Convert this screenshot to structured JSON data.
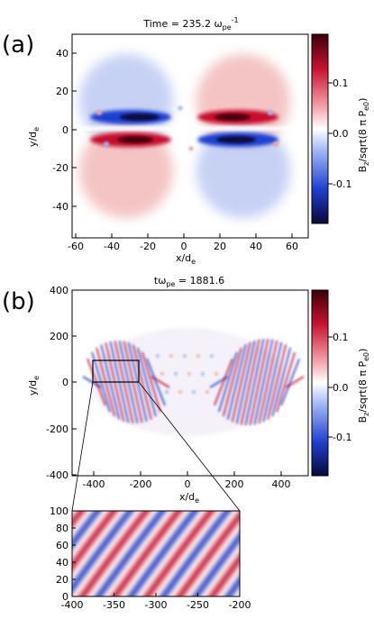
{
  "panel_a": {
    "tag": "(a)",
    "title_main": "Time =  235.2 ",
    "title_omega": "ω",
    "title_sub": "pe",
    "title_sup": "-1",
    "xlabel_main": "x/d",
    "xlabel_sub": "e",
    "ylabel_main": "y/d",
    "ylabel_sub": "e",
    "xticks": [
      "-60",
      "-40",
      "-20",
      "0",
      "20",
      "40",
      "60"
    ],
    "yticks": [
      "40",
      "20",
      "0",
      "-20",
      "-40"
    ],
    "colorbar": {
      "label": "B",
      "label_sub": "z",
      "label_rest": "/sqrt(8 π P",
      "label_sub2": "e0",
      "label_close": ")",
      "ticks": [
        "0.1",
        "0.0",
        "-0.1"
      ]
    }
  },
  "panel_b": {
    "tag": "(b)",
    "title_main": "tω",
    "title_sub": "pe",
    "title_rest": " = 1881.6",
    "xlabel_main": "x/d",
    "xlabel_sub": "e",
    "ylabel_main": "y/d",
    "ylabel_sub": "e",
    "xticks": [
      "-400",
      "-200",
      "0",
      "200",
      "400"
    ],
    "yticks": [
      "400",
      "200",
      "0",
      "-200",
      "-400"
    ],
    "colorbar": {
      "label": "B",
      "label_sub": "z",
      "label_rest": "/sqrt(8 π P",
      "label_sub2": "e0",
      "label_close": ")",
      "ticks": [
        "0.1",
        "0.0",
        "-0.1"
      ]
    }
  },
  "inset": {
    "xticks": [
      "-400",
      "-350",
      "-300",
      "-250",
      "-200"
    ],
    "yticks": [
      "100",
      "80",
      "60",
      "40",
      "20",
      "0"
    ]
  },
  "colors": {
    "red": "#c8102e",
    "blue": "#1f3fd0",
    "dark_red": "#4a0010",
    "dark_blue": "#0b0b40"
  }
}
